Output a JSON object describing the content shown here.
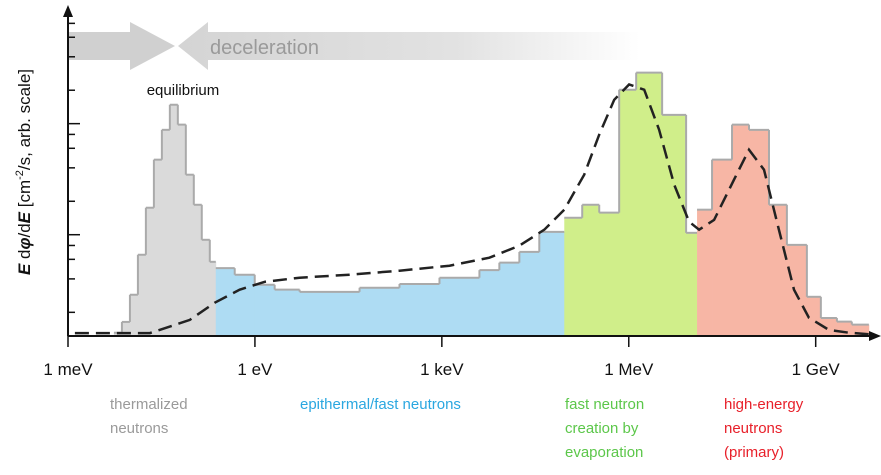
{
  "chart_data": {
    "type": "histogram",
    "ylabel_parts": [
      "E",
      " d",
      "φ",
      "/d",
      "E",
      " [cm",
      "-2",
      "/s, arb. scale]"
    ],
    "annotations": {
      "deceleration": "deceleration",
      "equilibrium": "equilibrium"
    },
    "xscale": "log",
    "yscale": "log",
    "xlim": [
      0.001,
      10000000000
    ],
    "xticks": [
      {
        "value": 0.001,
        "label": "1 meV"
      },
      {
        "value": 1,
        "label": "1 eV"
      },
      {
        "value": 1000,
        "label": "1 keV"
      },
      {
        "value": 1000000,
        "label": "1 MeV"
      },
      {
        "value": 1000000000,
        "label": "1 GeV"
      }
    ],
    "ylim": [
      0.125,
      110
    ],
    "yticks": [
      0.2,
      0.4,
      0.6,
      0.8,
      1,
      2,
      4,
      6,
      8,
      10,
      20,
      40,
      60,
      80
    ],
    "outline_color": "#aaaaaa",
    "series": [
      {
        "name": "thermalized neutrons",
        "color": "#dadada",
        "label_color": "#9a9a9a",
        "bins": [
          0.00546,
          0.00733,
          0.00986,
          0.01324,
          0.01778,
          0.0239,
          0.0321,
          0.0431,
          0.0579,
          0.0778,
          0.1045,
          0.1403,
          0.1887,
          0.2354
        ],
        "values": [
          0.131,
          0.164,
          0.288,
          0.66,
          1.75,
          4.74,
          8.8,
          14.8,
          9.8,
          3.47,
          1.86,
          0.9,
          0.57
        ]
      },
      {
        "name": "epithermal/fast neutrons",
        "color": "#aedcf3",
        "label_color": "#2aa7e0",
        "bins": [
          0.2354,
          0.474,
          0.993,
          2.075,
          5.22,
          47.8,
          209,
          916,
          4009,
          8375,
          17530,
          36640,
          92260
        ],
        "values": [
          0.5,
          0.436,
          0.354,
          0.32,
          0.306,
          0.333,
          0.36,
          0.41,
          0.48,
          0.56,
          0.7,
          1.06
        ]
      },
      {
        "name": "fast neutron creation by evaporation",
        "color": "#d0ee8a",
        "label_color": "#5cc74a",
        "bins": [
          92260,
          179000,
          335700,
          701500,
          1315000,
          3430000,
          8320000,
          12470000
        ],
        "values": [
          1.42,
          1.86,
          1.58,
          20.2,
          28.8,
          12.0,
          1.04
        ]
      },
      {
        "name": "high-energy neutrons (primary)",
        "color": "#f7b6a5",
        "label_color": "#e8202a",
        "bins": [
          12470000,
          21700000,
          45400000,
          85000000,
          178000000,
          345000000,
          722000000,
          1210000000,
          2190000000,
          3800000000,
          7130000000
        ],
        "values": [
          1.68,
          4.74,
          9.8,
          8.8,
          1.86,
          0.81,
          0.276,
          0.178,
          0.165,
          0.155
        ]
      }
    ],
    "curve": {
      "color": "#222222",
      "dashed": true,
      "x": [
        0.00129,
        0.0206,
        0.0902,
        0.227,
        0.57,
        1.436,
        5.22,
        33.0,
        209,
        1325,
        5790,
        17530,
        44060,
        92260,
        192800,
        335700,
        583400,
        1014000,
        1766000,
        3070000,
        5350000,
        9290000,
        13430000,
        23400000,
        48900000,
        85000000,
        147900000,
        257000000,
        448000000,
        778000000,
        1630000000,
        3400000000,
        8570000000
      ],
      "y": [
        0.13,
        0.13,
        0.171,
        0.244,
        0.32,
        0.377,
        0.41,
        0.436,
        0.474,
        0.526,
        0.621,
        0.796,
        1.11,
        1.68,
        3.47,
        7.96,
        16.4,
        22.5,
        20.2,
        8.83,
        2.82,
        1.31,
        1.11,
        1.36,
        3.13,
        5.83,
        3.85,
        1.11,
        0.32,
        0.179,
        0.139,
        0.131,
        0.126
      ]
    }
  }
}
